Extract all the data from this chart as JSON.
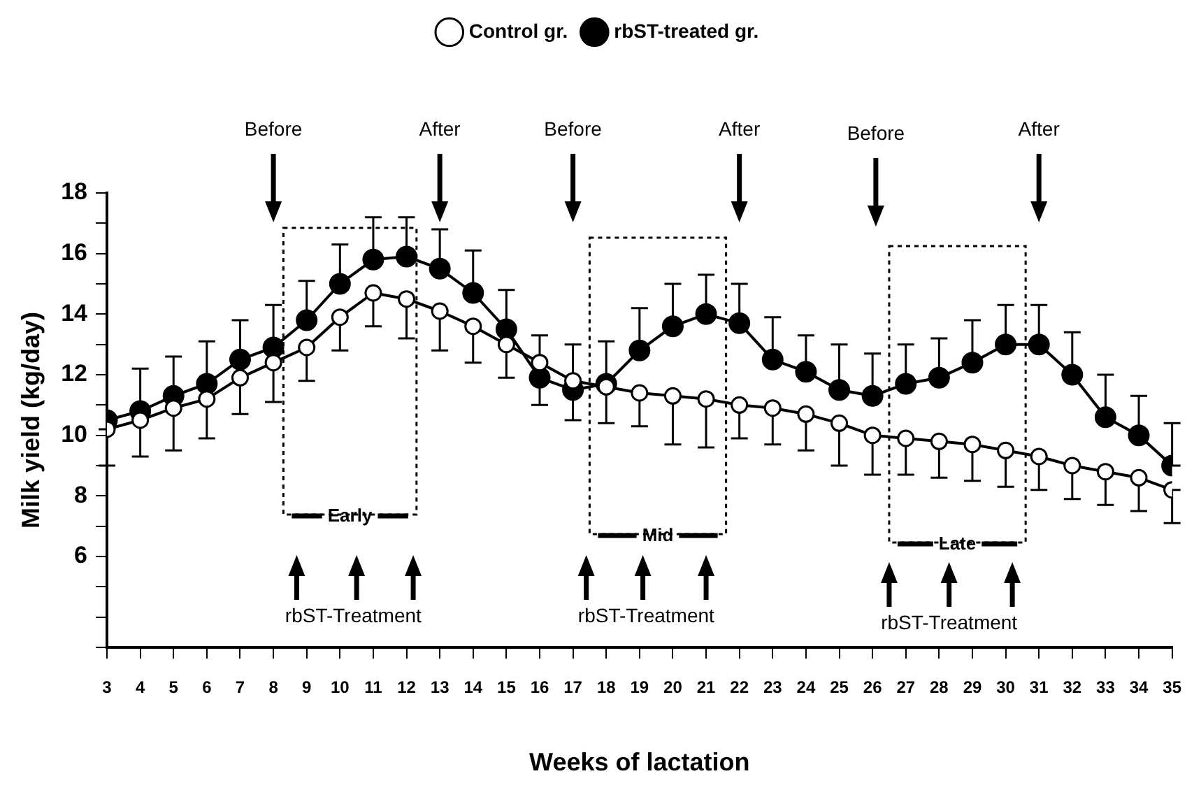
{
  "chart_data": {
    "type": "line",
    "xlabel": "Weeks of lactation",
    "ylabel": "Milk yield (kg/day)",
    "x": [
      3,
      4,
      5,
      6,
      7,
      8,
      9,
      10,
      11,
      12,
      13,
      14,
      15,
      16,
      17,
      18,
      19,
      20,
      21,
      22,
      23,
      24,
      25,
      26,
      27,
      28,
      29,
      30,
      31,
      32,
      33,
      34,
      35
    ],
    "xlim": [
      3,
      35
    ],
    "xticks": [
      3,
      4,
      5,
      6,
      7,
      8,
      9,
      10,
      11,
      12,
      13,
      14,
      15,
      16,
      17,
      18,
      19,
      20,
      21,
      22,
      23,
      24,
      25,
      26,
      27,
      28,
      29,
      30,
      31,
      32,
      33,
      34,
      35
    ],
    "ylim": [
      3,
      18
    ],
    "yticks": [
      {
        "value": 3,
        "label": null
      },
      {
        "value": 4,
        "label": null
      },
      {
        "value": 5,
        "label": null
      },
      6,
      {
        "value": 7,
        "label": null
      },
      8,
      {
        "value": 9,
        "label": null
      },
      10,
      {
        "value": 11,
        "label": null
      },
      12,
      {
        "value": 13,
        "label": null
      },
      14,
      {
        "value": 15,
        "label": null
      },
      16,
      {
        "value": 17,
        "label": null
      },
      18
    ],
    "series": [
      {
        "name": "rbST-treated gr.",
        "color": "#000000",
        "values": [
          10.5,
          10.8,
          11.3,
          11.7,
          12.5,
          12.9,
          13.8,
          15.0,
          15.8,
          15.9,
          15.5,
          14.7,
          13.5,
          11.9,
          11.5,
          11.7,
          12.8,
          13.6,
          14.0,
          13.7,
          12.5,
          12.1,
          11.5,
          11.3,
          11.7,
          11.9,
          12.4,
          13.0,
          13.0,
          12.0,
          10.6,
          10.0,
          9.0
        ],
        "errors": [
          null,
          [
            10.8,
            12.2
          ],
          [
            11.3,
            12.6
          ],
          [
            11.7,
            13.1
          ],
          [
            12.5,
            13.8
          ],
          [
            12.9,
            14.3
          ],
          [
            13.8,
            15.1
          ],
          [
            15.0,
            16.3
          ],
          [
            15.8,
            17.2
          ],
          [
            15.9,
            17.2
          ],
          [
            15.5,
            16.8
          ],
          [
            14.7,
            16.1
          ],
          [
            13.5,
            14.8
          ],
          [
            11.0,
            11.9
          ],
          [
            11.5,
            13.0
          ],
          [
            11.7,
            13.1
          ],
          [
            12.8,
            14.2
          ],
          [
            13.6,
            15.0
          ],
          [
            14.0,
            15.3
          ],
          [
            13.7,
            15.0
          ],
          [
            12.5,
            13.9
          ],
          [
            12.1,
            13.3
          ],
          [
            11.5,
            13.0
          ],
          [
            11.3,
            12.7
          ],
          [
            11.7,
            13.0
          ],
          [
            11.9,
            13.2
          ],
          [
            12.4,
            13.8
          ],
          [
            13.0,
            14.3
          ],
          [
            13.0,
            14.3
          ],
          [
            12.0,
            13.4
          ],
          [
            10.6,
            12.0
          ],
          [
            10.0,
            11.3
          ],
          [
            9.0,
            10.4
          ]
        ]
      },
      {
        "name": "Control gr.",
        "color": "#000000",
        "values": [
          10.2,
          10.5,
          10.9,
          11.2,
          11.9,
          12.4,
          12.9,
          13.9,
          14.7,
          14.5,
          14.1,
          13.6,
          13.0,
          12.4,
          11.8,
          11.6,
          11.4,
          11.3,
          11.2,
          11.0,
          10.9,
          10.7,
          10.4,
          10.0,
          9.9,
          9.8,
          9.7,
          9.5,
          9.3,
          9.0,
          8.8,
          8.6,
          8.2
        ],
        "errors": [
          [
            9.0,
            10.2
          ],
          [
            9.3,
            10.5
          ],
          [
            9.5,
            10.9
          ],
          [
            9.9,
            11.2
          ],
          [
            10.7,
            11.9
          ],
          [
            11.1,
            12.4
          ],
          [
            11.8,
            12.9
          ],
          [
            12.8,
            13.9
          ],
          [
            13.6,
            14.7
          ],
          [
            13.2,
            14.5
          ],
          [
            12.8,
            14.1
          ],
          [
            12.4,
            13.6
          ],
          [
            11.9,
            13.0
          ],
          [
            12.4,
            13.3
          ],
          [
            10.5,
            11.8
          ],
          [
            10.4,
            11.6
          ],
          [
            10.3,
            11.4
          ],
          [
            9.7,
            11.3
          ],
          [
            9.6,
            11.2
          ],
          [
            9.9,
            11.0
          ],
          [
            9.7,
            10.9
          ],
          [
            9.5,
            10.7
          ],
          [
            9.0,
            10.4
          ],
          [
            8.7,
            10.0
          ],
          [
            8.7,
            9.9
          ],
          [
            8.6,
            9.8
          ],
          [
            8.5,
            9.7
          ],
          [
            8.3,
            9.5
          ],
          [
            8.2,
            9.3
          ],
          [
            7.9,
            9.0
          ],
          [
            7.7,
            8.8
          ],
          [
            7.5,
            8.6
          ],
          [
            7.1,
            8.2
          ]
        ]
      }
    ],
    "annotations": [
      "Before",
      "After",
      "Before",
      "After",
      "Before",
      "After",
      "Early",
      "Mid",
      "Late",
      "rbST-Treatment",
      "rbST-Treatment",
      "rbST-Treatment"
    ],
    "grid": false,
    "legend": "top",
    "marker": "circle",
    "line_style": "solid"
  }
}
